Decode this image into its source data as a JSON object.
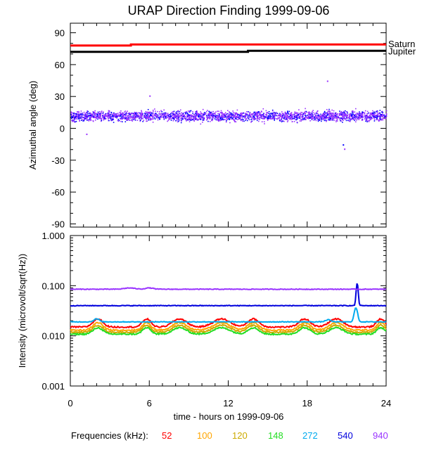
{
  "chart_data": [
    {
      "type": "scatter",
      "title": "URAP Direction Finding  1999-09-06",
      "ylabel": "Azimuthal angle (deg)",
      "xlim": [
        0,
        24
      ],
      "ylim": [
        -93,
        99
      ],
      "y_ticks": [
        "90",
        "60",
        "30",
        "0",
        "-30",
        "-60",
        "-90"
      ],
      "y_tick_values": [
        90,
        60,
        30,
        0,
        -30,
        -60,
        -90
      ],
      "reference_lines": [
        {
          "name": "Saturn",
          "color": "#ff0000",
          "points": [
            [
              0,
              78
            ],
            [
              4.6,
              78
            ],
            [
              4.6,
              79
            ],
            [
              24,
              79
            ]
          ]
        },
        {
          "name": "Jupiter",
          "color": "#000000",
          "points": [
            [
              0,
              72
            ],
            [
              13.5,
              72
            ],
            [
              13.5,
              73
            ],
            [
              24,
              73
            ]
          ]
        }
      ],
      "scatter_band": {
        "x": [
          0,
          24
        ],
        "center": 12,
        "spread": 9,
        "colors": [
          "#9933ff",
          "#0000ff"
        ]
      },
      "outliers": [
        {
          "x": 19.5,
          "y": 45,
          "color": "#9933ff"
        },
        {
          "x": 20.7,
          "y": -15,
          "color": "#0000ff"
        },
        {
          "x": 20.8,
          "y": -19,
          "color": "#9933ff"
        },
        {
          "x": 1.2,
          "y": -5,
          "color": "#9933ff"
        },
        {
          "x": 6.0,
          "y": 31,
          "color": "#9933ff"
        }
      ]
    },
    {
      "type": "line",
      "ylabel": "Intensity (microvolt/sqrt(Hz))",
      "xlabel": "time - hours on 1999-09-06",
      "xlim": [
        0,
        24
      ],
      "ylim": [
        0.001,
        1.0
      ],
      "y_scale": "log",
      "y_ticks": [
        "1.000",
        "0.100",
        "0.010",
        "0.001"
      ],
      "y_tick_values": [
        1.0,
        0.1,
        0.01,
        0.001
      ],
      "x_ticks": [
        "0",
        "6",
        "12",
        "18",
        "24"
      ],
      "x_tick_values": [
        0,
        6,
        12,
        18,
        24
      ],
      "legend_prefix": "Frequencies (kHz):",
      "series": [
        {
          "name": "52",
          "color": "#ff0000",
          "base": 0.015
        },
        {
          "name": "100",
          "color": "#ffa500",
          "base": 0.013
        },
        {
          "name": "120",
          "color": "#ccaa00",
          "base": 0.0118
        },
        {
          "name": "148",
          "color": "#22dd22",
          "base": 0.0108
        },
        {
          "name": "272",
          "color": "#00aaee",
          "base": 0.019
        },
        {
          "name": "540",
          "color": "#0000dd",
          "base": 0.04
        },
        {
          "name": "940",
          "color": "#9933ff",
          "base": 0.085
        }
      ]
    }
  ]
}
